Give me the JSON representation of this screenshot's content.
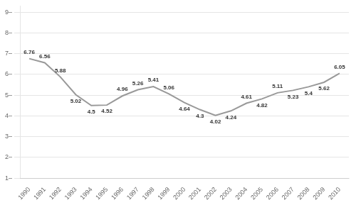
{
  "chart_data": {
    "type": "line",
    "x": [
      1990,
      1991,
      1992,
      1993,
      1994,
      1995,
      1996,
      1997,
      1998,
      1999,
      2000,
      2001,
      2002,
      2003,
      2004,
      2005,
      2006,
      2007,
      2008,
      2009,
      2010
    ],
    "values": [
      6.76,
      6.56,
      5.88,
      5.02,
      4.5,
      4.52,
      4.96,
      5.26,
      5.41,
      5.06,
      4.64,
      4.3,
      4.02,
      4.24,
      4.61,
      4.82,
      5.11,
      5.23,
      5.4,
      5.62,
      6.05
    ],
    "color": "#999999",
    "xlim": [
      1989.4,
      2010.6
    ],
    "xticks": [
      1990,
      1991,
      1992,
      1993,
      1994,
      1995,
      1996,
      1997,
      1998,
      1999,
      2000,
      2001,
      2002,
      2003,
      2004,
      2005,
      2006,
      2007,
      2008,
      2009,
      2010
    ],
    "ylim": [
      1,
      9.3
    ],
    "yticks": [
      {
        "value": 1,
        "label": "1–"
      },
      {
        "value": 2,
        "label": "2–"
      },
      {
        "value": 3,
        "label": "3–"
      },
      {
        "value": 4,
        "label": "4–"
      },
      {
        "value": 5,
        "label": "5–"
      },
      {
        "value": 6,
        "label": "6–"
      },
      {
        "value": 7,
        "label": "7–"
      },
      {
        "value": 8,
        "label": "8–"
      },
      {
        "value": 9,
        "label": "9–"
      }
    ],
    "grid": true,
    "data_labels": true
  }
}
